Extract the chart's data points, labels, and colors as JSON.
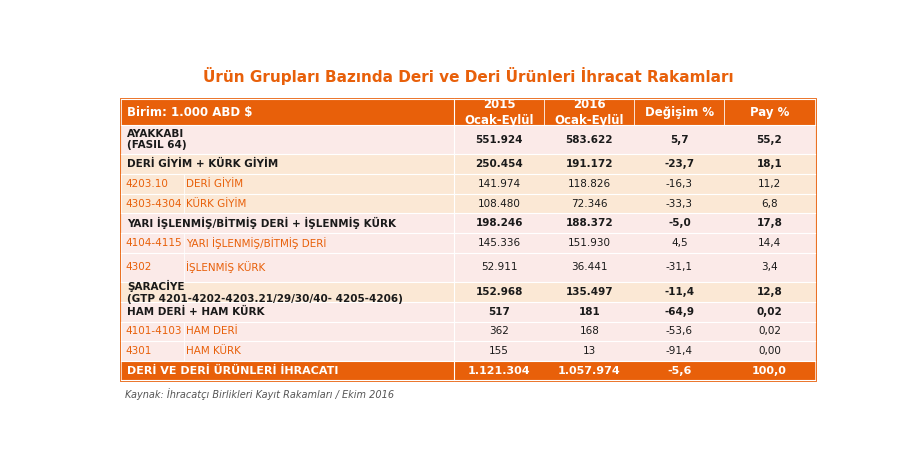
{
  "title": "Ürün Grupları Bazında Deri ve Deri Ürünleri İhracat Rakamları",
  "title_color": "#E8600A",
  "footer": "Kaynak: İhracatçı Birlikleri Kayıt Rakamları / Ekim 2016",
  "bg_color": "#FFFFFF",
  "orange_color": "#E8600A",
  "white": "#FFFFFF",
  "orange_text": "#E8600A",
  "black": "#1a1a1a",
  "header_label": "Birim: 1.000 ABD $",
  "col2015": "2015\nOcak-Eylül",
  "col2016": "2016\nOcak-Eylül",
  "col_degisim": "Değişim %",
  "col_pay": "Pay %",
  "row_heights_rel": [
    1.3,
    1.5,
    1.0,
    1.0,
    1.0,
    1.0,
    1.0,
    1.5,
    1.0,
    1.0,
    1.0,
    1.0,
    1.0
  ],
  "rows": [
    {
      "type": "group",
      "desc": "AYAKKABI\n(FASIL 64)",
      "code": null,
      "name": null,
      "v1": "551.924",
      "v2": "583.622",
      "v3": "5,7",
      "v4": "55,2",
      "bold_desc": true,
      "bold_vals": true,
      "bg": "#FBEAE8"
    },
    {
      "type": "group",
      "desc": "DERİ GİYİM + KÜRK GİYİM",
      "code": null,
      "name": null,
      "v1": "250.454",
      "v2": "191.172",
      "v3": "-23,7",
      "v4": "18,1",
      "bold_desc": true,
      "bold_vals": true,
      "bg": "#FBE8D5"
    },
    {
      "type": "sub",
      "desc": null,
      "code": "4203.10",
      "name": "DERİ GİYİM",
      "v1": "141.974",
      "v2": "118.826",
      "v3": "-16,3",
      "v4": "11,2",
      "bold_desc": false,
      "bold_vals": false,
      "bg": "#FBE8D5"
    },
    {
      "type": "sub",
      "desc": null,
      "code": "4303-4304",
      "name": "KÜRK GİYİM",
      "v1": "108.480",
      "v2": "72.346",
      "v3": "-33,3",
      "v4": "6,8",
      "bold_desc": false,
      "bold_vals": false,
      "bg": "#FBE8D5"
    },
    {
      "type": "group",
      "desc": "YARI İŞLENMİŞ/BİTMİŞ DERİ + İŞLENMİŞ KÜRK",
      "code": null,
      "name": null,
      "v1": "198.246",
      "v2": "188.372",
      "v3": "-5,0",
      "v4": "17,8",
      "bold_desc": true,
      "bold_vals": true,
      "bg": "#FBEAE8"
    },
    {
      "type": "sub",
      "desc": null,
      "code": "4104-4115",
      "name": "YARI İŞLENMİŞ/BİTMİŞ DERİ",
      "v1": "145.336",
      "v2": "151.930",
      "v3": "4,5",
      "v4": "14,4",
      "bold_desc": false,
      "bold_vals": false,
      "bg": "#FBEAE8"
    },
    {
      "type": "sub",
      "desc": null,
      "code": "4302",
      "name": "İŞLENMİŞ KÜRK",
      "v1": "52.911",
      "v2": "36.441",
      "v3": "-31,1",
      "v4": "3,4",
      "bold_desc": false,
      "bold_vals": false,
      "bg": "#FBEAE8"
    },
    {
      "type": "group",
      "desc": "ŞARACİYE\n(GTP 4201-4202-4203.21/29/30/40- 4205-4206)",
      "code": null,
      "name": null,
      "v1": "152.968",
      "v2": "135.497",
      "v3": "-11,4",
      "v4": "12,8",
      "bold_desc": true,
      "bold_vals": true,
      "bg": "#FBE8D5"
    },
    {
      "type": "group",
      "desc": "HAM DERİ + HAM KÜRK",
      "code": null,
      "name": null,
      "v1": "517",
      "v2": "181",
      "v3": "-64,9",
      "v4": "0,02",
      "bold_desc": true,
      "bold_vals": true,
      "bg": "#FBEAE8"
    },
    {
      "type": "sub",
      "desc": null,
      "code": "4101-4103",
      "name": "HAM DERİ",
      "v1": "362",
      "v2": "168",
      "v3": "-53,6",
      "v4": "0,02",
      "bold_desc": false,
      "bold_vals": false,
      "bg": "#FBEAE8"
    },
    {
      "type": "sub",
      "desc": null,
      "code": "4301",
      "name": "HAM KÜRK",
      "v1": "155",
      "v2": "13",
      "v3": "-91,4",
      "v4": "0,00",
      "bold_desc": false,
      "bold_vals": false,
      "bg": "#FBEAE8"
    },
    {
      "type": "total",
      "desc": "DERİ VE DERİ ÜRÜNLERİ İHRACATI",
      "code": null,
      "name": null,
      "v1": "1.121.304",
      "v2": "1.057.974",
      "v3": "-5,6",
      "v4": "100,0",
      "bold_desc": true,
      "bold_vals": true,
      "bg": "#E8600A"
    }
  ]
}
